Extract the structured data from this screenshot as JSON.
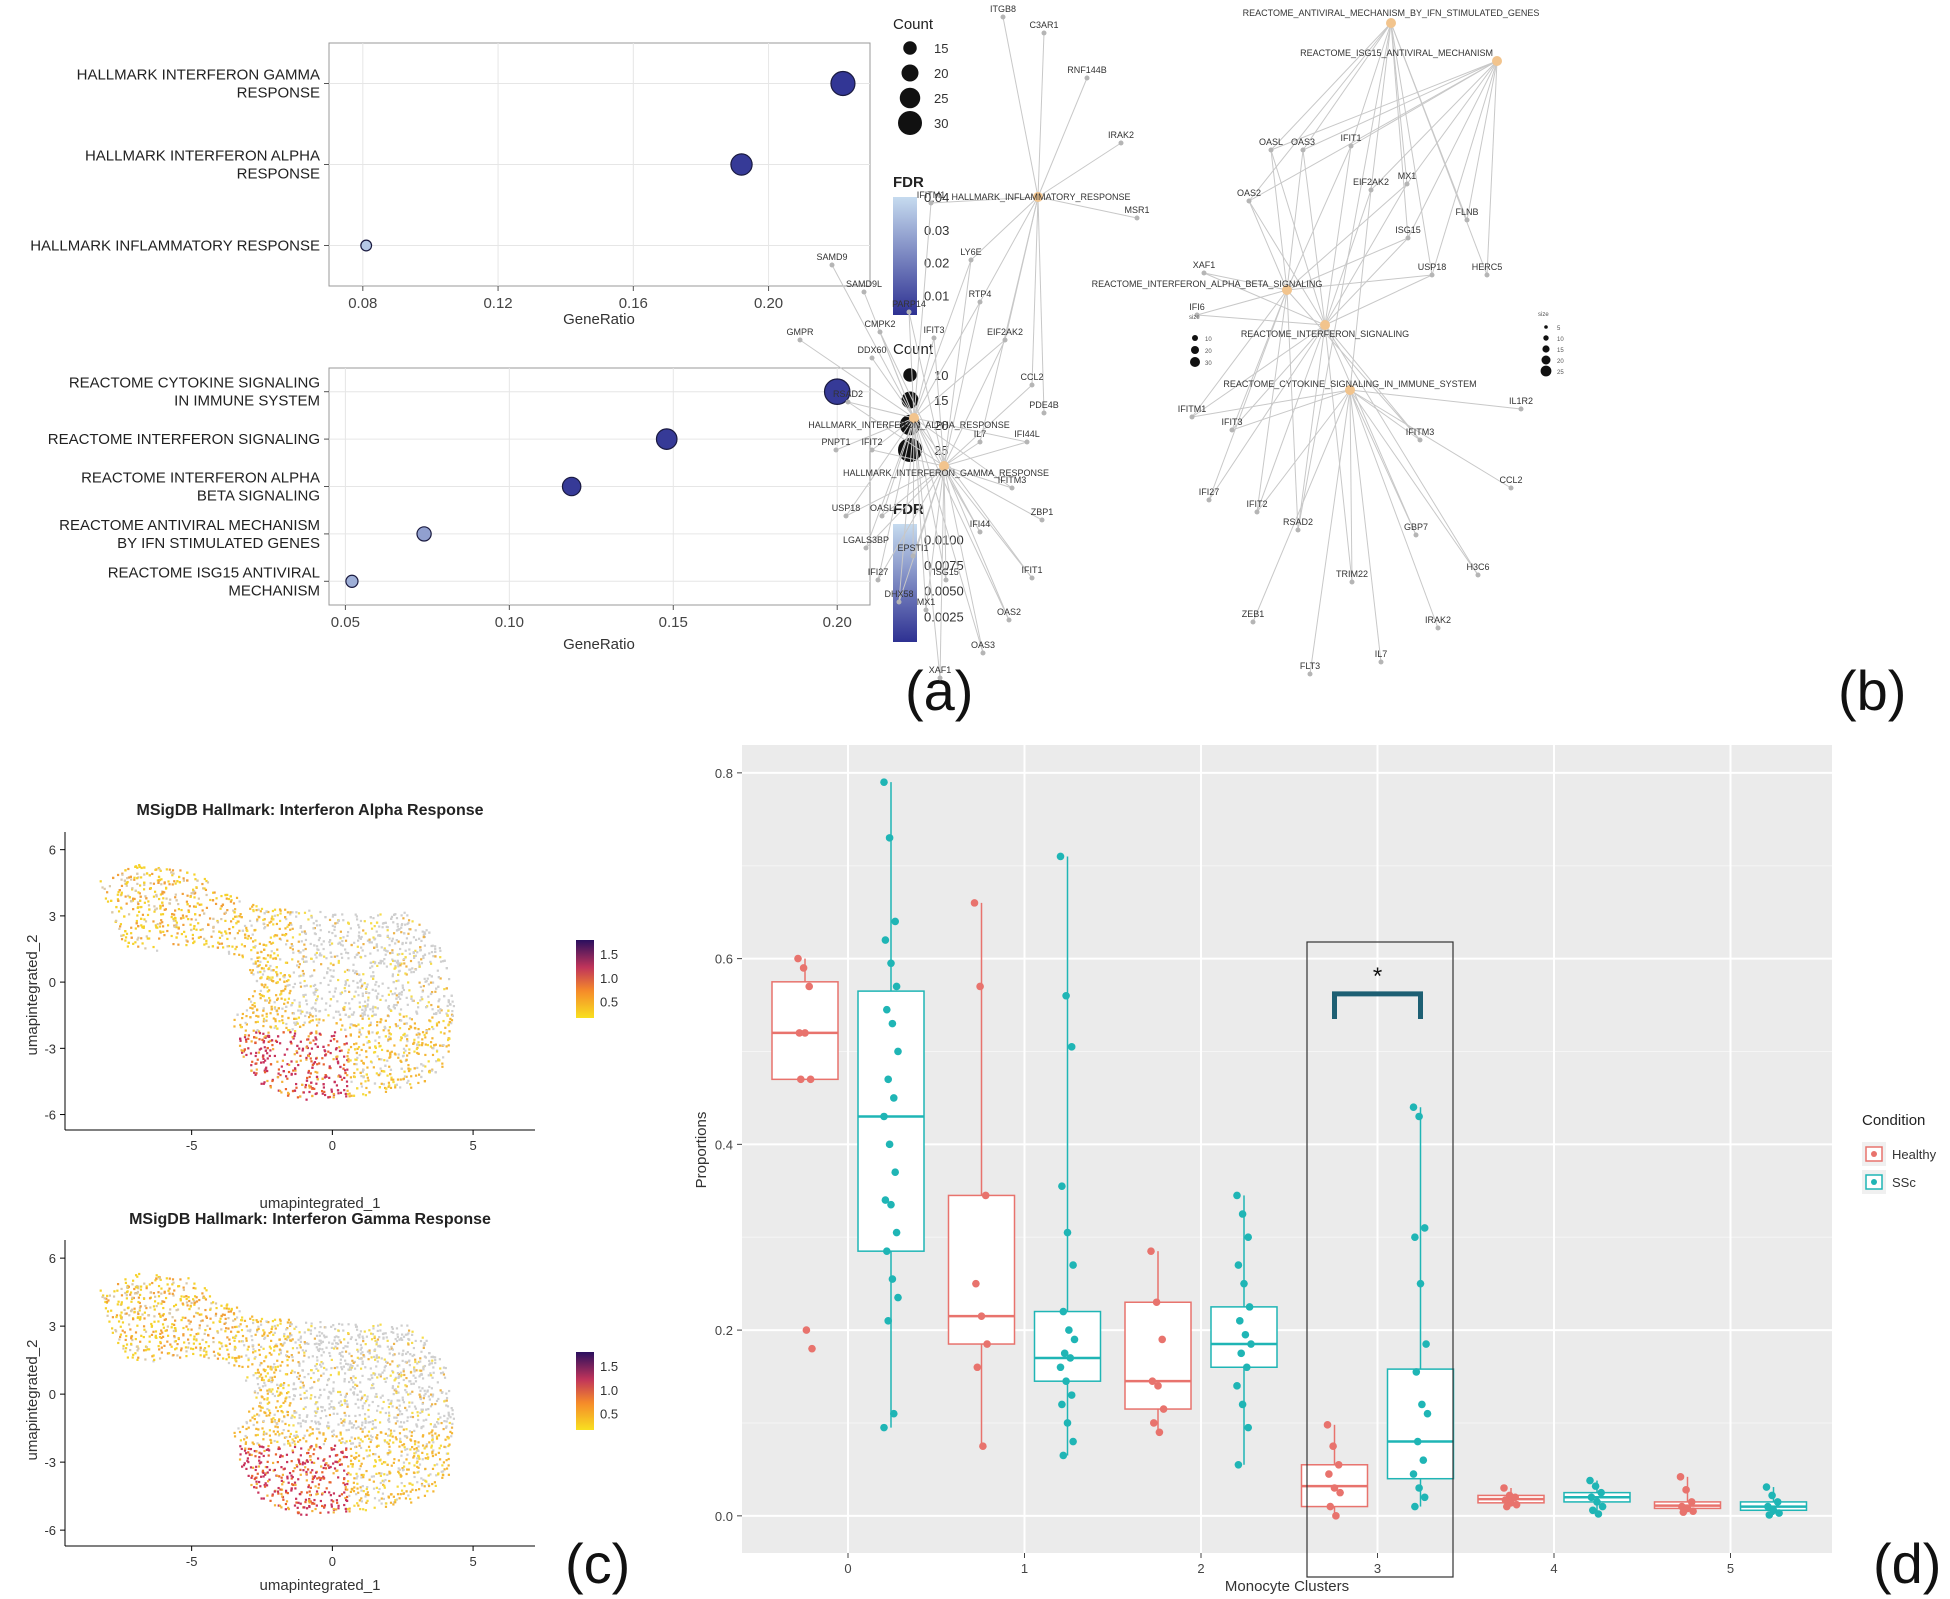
{
  "panels": {
    "a": "(a)",
    "b": "(b)",
    "c": "(c)",
    "d": "(d)"
  },
  "colors": {
    "fdr_low": "#2e3192",
    "fdr_high": "#c6dbef",
    "healthy": "#e8736d",
    "ssc": "#1fb5b5",
    "bracket": "#1d5f73",
    "node_gene": "#b5b5b5",
    "node_term": "#f2c48d",
    "edge": "#c8c8c8",
    "umap_grey": "#cfcfcf",
    "panel_bg": "#ebebeb"
  },
  "chart_data": [
    {
      "id": "a1",
      "type": "scatter",
      "xlabel": "GeneRatio",
      "xlim": [
        0.07,
        0.23
      ],
      "xticks": [
        0.08,
        0.12,
        0.16,
        0.2
      ],
      "xtick_labels": [
        "0.08",
        "0.12",
        "0.16",
        "0.20"
      ],
      "categories": [
        [
          "HALLMARK INTERFERON GAMMA",
          "RESPONSE"
        ],
        [
          "HALLMARK INTERFERON ALPHA",
          "RESPONSE"
        ],
        [
          "HALLMARK INFLAMMATORY RESPONSE"
        ]
      ],
      "points": [
        {
          "x": 0.222,
          "count": 30,
          "fdr": 0.005
        },
        {
          "x": 0.192,
          "count": 26,
          "fdr": 0.006
        },
        {
          "x": 0.081,
          "count": 11,
          "fdr": 0.036
        }
      ],
      "size_legend": {
        "title": "Count",
        "values": [
          15,
          20,
          25,
          30
        ],
        "labels": [
          "15",
          "20",
          "25",
          "30"
        ]
      },
      "color_legend": {
        "title": "FDR",
        "min": 0.004,
        "max": 0.04,
        "ticks": [
          0.04,
          0.03,
          0.02,
          0.01
        ],
        "labels": [
          "0.04",
          "0.03",
          "0.02",
          "0.01"
        ]
      }
    },
    {
      "id": "a2",
      "type": "scatter",
      "xlabel": "GeneRatio",
      "xlim": [
        0.045,
        0.21
      ],
      "xticks": [
        0.05,
        0.1,
        0.15,
        0.2
      ],
      "xtick_labels": [
        "0.05",
        "0.10",
        "0.15",
        "0.20"
      ],
      "categories": [
        [
          "REACTOME CYTOKINE SIGNALING",
          "IN IMMUNE SYSTEM"
        ],
        [
          "REACTOME INTERFERON SIGNALING"
        ],
        [
          "REACTOME INTERFERON ALPHA",
          "BETA SIGNALING"
        ],
        [
          "REACTOME ANTIVIRAL MECHANISM",
          "BY IFN STIMULATED GENES"
        ],
        [
          "REACTOME ISG15 ANTIVIRAL",
          "MECHANISM"
        ]
      ],
      "points": [
        {
          "x": 0.2,
          "count": 27,
          "fdr": 0.0006
        },
        {
          "x": 0.148,
          "count": 20,
          "fdr": 0.0006
        },
        {
          "x": 0.119,
          "count": 17,
          "fdr": 0.0006
        },
        {
          "x": 0.074,
          "count": 11,
          "fdr": 0.0075
        },
        {
          "x": 0.052,
          "count": 8,
          "fdr": 0.0085
        }
      ],
      "size_legend": {
        "title": "Count",
        "values": [
          10,
          15,
          20,
          25
        ],
        "labels": [
          "10",
          "15",
          "20",
          "25"
        ]
      },
      "color_legend": {
        "title": "FDR",
        "min": 0.0,
        "max": 0.0115,
        "ticks": [
          0.01,
          0.0075,
          0.005,
          0.0025
        ],
        "labels": [
          "0.0100",
          "0.0075",
          "0.0050",
          "0.0025"
        ]
      }
    },
    {
      "id": "b1",
      "type": "network",
      "terms": [
        {
          "id": "INF",
          "label": "HALLMARK_INFLAMMATORY_RESPONSE"
        },
        {
          "id": "ALPHA",
          "label": "HALLMARK_INTERFERON_ALPHA_RESPONSE"
        },
        {
          "id": "GAMMA",
          "label": "HALLMARK_INTERFERON_GAMMA_RESPONSE"
        }
      ],
      "genes": [
        "ITGB8",
        "C3AR1",
        "RNF144B",
        "IRAK2",
        "MSR1",
        "IFITM1",
        "LY6E",
        "RTP4",
        "EIF2AK2",
        "CCL2",
        "PDE4B",
        "IL7",
        "IFI44L",
        "IFITM3",
        "ZBP1",
        "IFI44",
        "IFIT1",
        "OAS2",
        "OAS3",
        "XAF1",
        "ISG15",
        "MX1",
        "DHX58",
        "EPSTI1",
        "IFI27",
        "OASL",
        "LGALS3BP",
        "USP18",
        "PNPT1",
        "IFIT2",
        "RSAD2",
        "DDX60",
        "CMPK2",
        "GMPR",
        "SAMD9",
        "SAMD9L",
        "PARP14",
        "IFIT3"
      ]
    },
    {
      "id": "b2",
      "type": "network",
      "terms": [
        {
          "id": "ANTI",
          "label": "REACTOME_ANTIVIRAL_MECHANISM_BY_IFN_STIMULATED_GENES"
        },
        {
          "id": "ISG",
          "label": "REACTOME_ISG15_ANTIVIRAL_MECHANISM"
        },
        {
          "id": "AB",
          "label": "REACTOME_INTERFERON_ALPHA_BETA_SIGNALING"
        },
        {
          "id": "IFN",
          "label": "REACTOME_INTERFERON_SIGNALING"
        },
        {
          "id": "CYT",
          "label": "REACTOME_CYTOKINE_SIGNALING_IN_IMMUNE_SYSTEM"
        }
      ],
      "genes": [
        "OASL",
        "OAS3",
        "IFIT1",
        "OAS2",
        "EIF2AK2",
        "MX1",
        "ISG15",
        "FLNB",
        "XAF1",
        "USP18",
        "HERC5",
        "IFI6",
        "IFITM1",
        "IFIT3",
        "IL1R2",
        "IFITM3",
        "CCL2",
        "IFI27",
        "IFIT2",
        "RSAD2",
        "GBP7",
        "TRIM22",
        "H3C6",
        "ZEB1",
        "IRAK2",
        "FLT3",
        "IL7"
      ],
      "size_legend": {
        "title": "size",
        "values": [
          "10",
          "20",
          "30"
        ]
      },
      "size_legend_right": {
        "title": "size",
        "values": [
          "5",
          "10",
          "15",
          "20",
          "25"
        ]
      }
    },
    {
      "id": "c1",
      "type": "scatter",
      "title": "MSigDB Hallmark: Interferon Alpha Response",
      "xlabel": "umapintegrated_1",
      "ylabel": "umapintegrated_2",
      "xticks": [
        -5,
        0,
        5
      ],
      "xtick_labels": [
        "-5",
        "0",
        "5"
      ],
      "yticks": [
        6,
        3,
        0,
        -3,
        -6
      ],
      "ytick_labels": [
        "6",
        "3",
        "0",
        "-3",
        "-6"
      ],
      "xlim": [
        -9.5,
        7.2
      ],
      "ylim": [
        -6.7,
        6.8
      ],
      "color_scale": {
        "ticks": [
          1.5,
          1.0,
          0.5
        ],
        "labels": [
          "1.5",
          "1.0",
          "0.5"
        ]
      }
    },
    {
      "id": "c2",
      "type": "scatter",
      "title": "MSigDB Hallmark: Interferon Gamma Response",
      "xlabel": "umapintegrated_1",
      "ylabel": "umapintegrated_2",
      "xticks": [
        -5,
        0,
        5
      ],
      "xtick_labels": [
        "-5",
        "0",
        "5"
      ],
      "yticks": [
        6,
        3,
        0,
        -3,
        -6
      ],
      "ytick_labels": [
        "6",
        "3",
        "0",
        "-3",
        "-6"
      ],
      "xlim": [
        -9.5,
        7.2
      ],
      "ylim": [
        -6.7,
        6.8
      ],
      "color_scale": {
        "ticks": [
          1.5,
          1.0,
          0.5
        ],
        "labels": [
          "1.5",
          "1.0",
          "0.5"
        ]
      }
    },
    {
      "id": "d",
      "type": "box",
      "xlabel": "Monocyte Clusters",
      "ylabel": "Proportions",
      "ylim": [
        -0.04,
        0.83
      ],
      "yticks": [
        0.0,
        0.2,
        0.4,
        0.6,
        0.8
      ],
      "ytick_labels": [
        "0.0",
        "0.2",
        "0.4",
        "0.6",
        "0.8"
      ],
      "categories": [
        "0",
        "1",
        "2",
        "3",
        "4",
        "5"
      ],
      "legend_title": "Condition",
      "significance": {
        "cluster": "3",
        "label": "*"
      },
      "series": [
        {
          "name": "Healthy",
          "boxes": [
            {
              "q1": 0.47,
              "median": 0.52,
              "q3": 0.575,
              "lo": 0.47,
              "hi": 0.6,
              "points": [
                0.6,
                0.59,
                0.57,
                0.52,
                0.52,
                0.47,
                0.47,
                0.2,
                0.18
              ]
            },
            {
              "q1": 0.185,
              "median": 0.215,
              "q3": 0.345,
              "lo": 0.075,
              "hi": 0.66,
              "points": [
                0.66,
                0.57,
                0.345,
                0.25,
                0.215,
                0.185,
                0.16,
                0.075
              ]
            },
            {
              "q1": 0.115,
              "median": 0.145,
              "q3": 0.23,
              "lo": 0.09,
              "hi": 0.285,
              "points": [
                0.285,
                0.23,
                0.19,
                0.145,
                0.14,
                0.115,
                0.1,
                0.09
              ]
            },
            {
              "q1": 0.01,
              "median": 0.032,
              "q3": 0.055,
              "lo": 0.0,
              "hi": 0.098,
              "points": [
                0.098,
                0.075,
                0.055,
                0.045,
                0.03,
                0.025,
                0.01,
                0.0
              ]
            },
            {
              "q1": 0.014,
              "median": 0.018,
              "q3": 0.022,
              "lo": 0.01,
              "hi": 0.03,
              "points": [
                0.03,
                0.022,
                0.02,
                0.017,
                0.014,
                0.012,
                0.01
              ]
            },
            {
              "q1": 0.008,
              "median": 0.011,
              "q3": 0.015,
              "lo": 0.004,
              "hi": 0.042,
              "points": [
                0.042,
                0.028,
                0.015,
                0.01,
                0.008,
                0.005,
                0.004
              ]
            }
          ]
        },
        {
          "name": "SSc",
          "boxes": [
            {
              "q1": 0.285,
              "median": 0.43,
              "q3": 0.565,
              "lo": 0.095,
              "hi": 0.79,
              "points": [
                0.79,
                0.73,
                0.64,
                0.62,
                0.595,
                0.57,
                0.545,
                0.53,
                0.5,
                0.47,
                0.45,
                0.43,
                0.4,
                0.37,
                0.34,
                0.335,
                0.305,
                0.285,
                0.255,
                0.235,
                0.21,
                0.11,
                0.095
              ]
            },
            {
              "q1": 0.145,
              "median": 0.17,
              "q3": 0.22,
              "lo": 0.065,
              "hi": 0.71,
              "points": [
                0.71,
                0.56,
                0.505,
                0.355,
                0.305,
                0.27,
                0.22,
                0.2,
                0.19,
                0.175,
                0.17,
                0.16,
                0.145,
                0.13,
                0.12,
                0.1,
                0.08,
                0.065
              ]
            },
            {
              "q1": 0.16,
              "median": 0.185,
              "q3": 0.225,
              "lo": 0.055,
              "hi": 0.345,
              "points": [
                0.345,
                0.325,
                0.3,
                0.27,
                0.25,
                0.225,
                0.21,
                0.195,
                0.185,
                0.175,
                0.16,
                0.14,
                0.12,
                0.095,
                0.055
              ]
            },
            {
              "q1": 0.04,
              "median": 0.08,
              "q3": 0.158,
              "lo": 0.01,
              "hi": 0.44,
              "points": [
                0.44,
                0.43,
                0.31,
                0.3,
                0.25,
                0.185,
                0.155,
                0.12,
                0.11,
                0.08,
                0.06,
                0.045,
                0.03,
                0.02,
                0.01
              ]
            },
            {
              "q1": 0.015,
              "median": 0.02,
              "q3": 0.025,
              "lo": 0.002,
              "hi": 0.038,
              "points": [
                0.038,
                0.032,
                0.025,
                0.02,
                0.015,
                0.01,
                0.006,
                0.002
              ]
            },
            {
              "q1": 0.006,
              "median": 0.01,
              "q3": 0.015,
              "lo": 0.001,
              "hi": 0.031,
              "points": [
                0.031,
                0.022,
                0.015,
                0.01,
                0.006,
                0.003,
                0.001
              ]
            }
          ]
        }
      ]
    }
  ]
}
